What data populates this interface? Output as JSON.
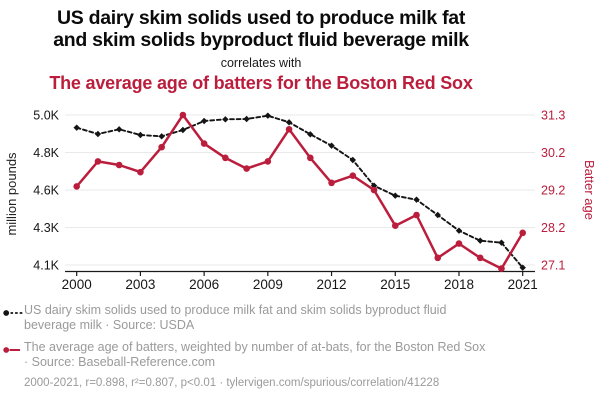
{
  "header": {
    "title_lines": [
      "US dairy skim solids used to produce milk fat",
      "and skim solids byproduct fluid beverage milk"
    ],
    "connector": "correlates with",
    "subtitle": "The average age of batters for the Boston Red Sox"
  },
  "chart_data": {
    "type": "line",
    "x": [
      2000,
      2001,
      2002,
      2003,
      2004,
      2005,
      2006,
      2007,
      2008,
      2009,
      2010,
      2011,
      2012,
      2013,
      2014,
      2015,
      2016,
      2017,
      2018,
      2019,
      2020,
      2021
    ],
    "x_tick_years": [
      2000,
      2003,
      2006,
      2009,
      2012,
      2015,
      2018,
      2021
    ],
    "series": [
      {
        "name": "US dairy skim solids used to produce milk fat and skim solids byproduct fluid beverage milk",
        "axis": "left",
        "units": "million pounds",
        "color": "#141414",
        "line_style": "dashed",
        "marker": "diamond",
        "values": [
          4924,
          4886,
          4914,
          4880,
          4872,
          4910,
          4964,
          4974,
          4976,
          4996,
          4956,
          4884,
          4816,
          4730,
          4576,
          4516,
          4492,
          4400,
          4306,
          4246,
          4234,
          4084
        ]
      },
      {
        "name": "The average age of batters, weighted by number of at-bats, for the Boston Red Sox",
        "axis": "right",
        "units": "years",
        "color": "#bb1e3d",
        "line_style": "solid",
        "marker": "circle",
        "values": [
          29.3,
          30.0,
          29.9,
          29.7,
          30.4,
          31.3,
          30.5,
          30.1,
          29.8,
          30.0,
          30.9,
          30.1,
          29.4,
          29.6,
          29.2,
          28.2,
          28.5,
          27.3,
          27.7,
          27.3,
          27.0,
          28.0
        ]
      }
    ],
    "left_axis": {
      "label": "million pounds",
      "range": [
        4100,
        5000
      ],
      "tick_labels": [
        "5.0K",
        "4.8K",
        "4.6K",
        "4.3K",
        "4.1K"
      ]
    },
    "right_axis": {
      "label": "Batter age",
      "range": [
        27.1,
        31.3
      ],
      "tick_labels": [
        "31.3",
        "30.2",
        "29.2",
        "28.2",
        "27.1"
      ]
    },
    "grid": "horizontal",
    "legend_position": "bottom"
  },
  "legend": {
    "items": [
      {
        "marker": "black-dashed-dot",
        "lines": [
          "US dairy skim solids used to produce milk fat and skim solids byproduct fluid",
          "beverage milk · Source: USDA"
        ]
      },
      {
        "marker": "red-solid-dot",
        "lines": [
          "The average age of batters, weighted by number of at-bats, for the Boston Red Sox",
          "· Source: Baseball-Reference.com"
        ]
      }
    ],
    "footnote": "2000-2021, r=0.898, r²=0.807, p<0.01 · tylervigen.com/spurious/correlation/41228"
  },
  "colors": {
    "accent_red": "#bb1e3d",
    "series_black": "#141414",
    "legend_gray": "#9a9a9a",
    "gridline": "#e9e9e9",
    "axis_line": "#1a1a1a"
  }
}
